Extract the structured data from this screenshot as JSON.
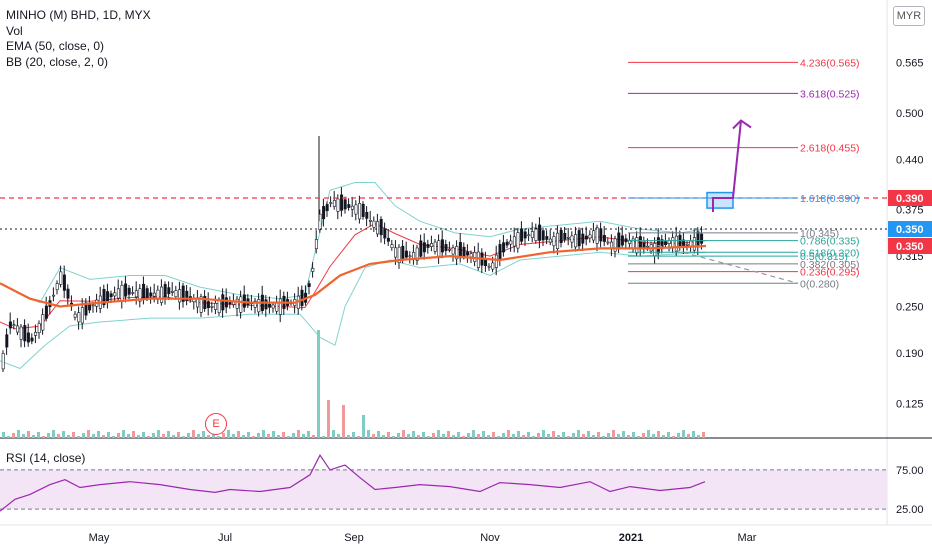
{
  "legend": {
    "title": "MINHO (M) BHD, 1D, MYX",
    "vol": "Vol",
    "ema": "EMA (50, close, 0)",
    "bb": "BB (20, close, 2, 0)"
  },
  "currency_button": "MYR",
  "earnings_marker": "E",
  "rsi_label": "RSI (14, close)",
  "colors": {
    "up": "#131722",
    "down": "#131722",
    "ema": "#f0642d",
    "bb_band": "#7fd3cf",
    "bb_basis": "#f23645",
    "red_price": "#f23645",
    "blue_price": "#2196f3",
    "fib_purple": "#9c27b0",
    "rsi_line": "#9c27b0",
    "rsi_fill": "#f3e5f5"
  },
  "chart_data": {
    "type": "candlestick",
    "y_tick_labels": [
      "0.565",
      "0.500",
      "0.440",
      "0.375",
      "0.315",
      "0.250",
      "0.190",
      "0.125"
    ],
    "x_tick_labels": [
      "May",
      "Jul",
      "Sep",
      "Nov",
      "2021",
      "Mar"
    ],
    "price_labels": [
      {
        "text": "0.390",
        "color": "#f23645"
      },
      {
        "text": "0.350",
        "color": "#2196f3"
      },
      {
        "text": "0.350",
        "color": "#f23645"
      }
    ],
    "fib_levels": [
      {
        "label": "4.236(0.565)",
        "value": 0.565,
        "color": "#f23645"
      },
      {
        "label": "3.618(0.525)",
        "value": 0.525,
        "color": "#9c27b0"
      },
      {
        "label": "2.618(0.455)",
        "value": 0.455,
        "color": "#f23645"
      },
      {
        "label": "1.618(0.390)",
        "value": 0.39,
        "color": "#2196f3"
      },
      {
        "label": "1(0.345)",
        "value": 0.345,
        "color": "#787b86"
      },
      {
        "label": "0.786(0.335)",
        "value": 0.335,
        "color": "#26a69a"
      },
      {
        "label": "0.618(0.320)",
        "value": 0.32,
        "color": "#26a69a"
      },
      {
        "label": "0.5(0.315)",
        "value": 0.315,
        "color": "#26a69a"
      },
      {
        "label": "0.382(0.305)",
        "value": 0.305,
        "color": "#787b86"
      },
      {
        "label": "0.236(0.295)",
        "value": 0.295,
        "color": "#f23645"
      },
      {
        "label": "0(0.280)",
        "value": 0.28,
        "color": "#787b86"
      }
    ],
    "resistance": 0.39,
    "current": 0.35,
    "rsi_ticks": [
      "75.00",
      "25.00"
    ],
    "rsi_levels": [
      70,
      30
    ],
    "price_path": [
      [
        0,
        0.17
      ],
      [
        10,
        0.23
      ],
      [
        30,
        0.205
      ],
      [
        45,
        0.24
      ],
      [
        60,
        0.29
      ],
      [
        75,
        0.235
      ],
      [
        95,
        0.255
      ],
      [
        120,
        0.27
      ],
      [
        150,
        0.265
      ],
      [
        170,
        0.27
      ],
      [
        190,
        0.26
      ],
      [
        210,
        0.25
      ],
      [
        230,
        0.255
      ],
      [
        250,
        0.255
      ],
      [
        270,
        0.25
      ],
      [
        290,
        0.255
      ],
      [
        305,
        0.26
      ],
      [
        312,
        0.3
      ],
      [
        318,
        0.36
      ],
      [
        330,
        0.385
      ],
      [
        345,
        0.38
      ],
      [
        360,
        0.375
      ],
      [
        370,
        0.36
      ],
      [
        380,
        0.35
      ],
      [
        395,
        0.32
      ],
      [
        410,
        0.315
      ],
      [
        430,
        0.33
      ],
      [
        445,
        0.325
      ],
      [
        460,
        0.32
      ],
      [
        475,
        0.315
      ],
      [
        490,
        0.3
      ],
      [
        505,
        0.33
      ],
      [
        520,
        0.34
      ],
      [
        535,
        0.345
      ],
      [
        550,
        0.335
      ],
      [
        565,
        0.34
      ],
      [
        580,
        0.335
      ],
      [
        595,
        0.345
      ],
      [
        610,
        0.33
      ],
      [
        625,
        0.335
      ],
      [
        640,
        0.33
      ],
      [
        655,
        0.325
      ],
      [
        670,
        0.335
      ],
      [
        685,
        0.33
      ],
      [
        700,
        0.335
      ],
      [
        706,
        0.35
      ]
    ],
    "ema_path": [
      [
        0,
        0.28
      ],
      [
        30,
        0.26
      ],
      [
        60,
        0.25
      ],
      [
        100,
        0.255
      ],
      [
        150,
        0.26
      ],
      [
        200,
        0.26
      ],
      [
        250,
        0.255
      ],
      [
        295,
        0.255
      ],
      [
        315,
        0.265
      ],
      [
        340,
        0.29
      ],
      [
        370,
        0.305
      ],
      [
        400,
        0.31
      ],
      [
        450,
        0.315
      ],
      [
        500,
        0.31
      ],
      [
        550,
        0.32
      ],
      [
        600,
        0.325
      ],
      [
        650,
        0.325
      ],
      [
        706,
        0.328
      ]
    ],
    "bb_upper_path": [
      [
        0,
        0.28
      ],
      [
        15,
        0.27
      ],
      [
        40,
        0.255
      ],
      [
        60,
        0.3
      ],
      [
        90,
        0.285
      ],
      [
        130,
        0.29
      ],
      [
        165,
        0.29
      ],
      [
        200,
        0.275
      ],
      [
        240,
        0.265
      ],
      [
        280,
        0.26
      ],
      [
        305,
        0.265
      ],
      [
        315,
        0.32
      ],
      [
        330,
        0.4
      ],
      [
        355,
        0.41
      ],
      [
        375,
        0.41
      ],
      [
        395,
        0.38
      ],
      [
        420,
        0.36
      ],
      [
        455,
        0.345
      ],
      [
        490,
        0.34
      ],
      [
        520,
        0.35
      ],
      [
        560,
        0.355
      ],
      [
        600,
        0.36
      ],
      [
        640,
        0.35
      ],
      [
        680,
        0.345
      ],
      [
        706,
        0.35
      ]
    ],
    "bb_lower_path": [
      [
        0,
        0.18
      ],
      [
        20,
        0.17
      ],
      [
        45,
        0.2
      ],
      [
        70,
        0.225
      ],
      [
        100,
        0.23
      ],
      [
        150,
        0.235
      ],
      [
        200,
        0.235
      ],
      [
        250,
        0.24
      ],
      [
        300,
        0.24
      ],
      [
        320,
        0.21
      ],
      [
        335,
        0.2
      ],
      [
        345,
        0.25
      ],
      [
        365,
        0.3
      ],
      [
        390,
        0.31
      ],
      [
        420,
        0.3
      ],
      [
        460,
        0.305
      ],
      [
        490,
        0.29
      ],
      [
        520,
        0.31
      ],
      [
        560,
        0.315
      ],
      [
        600,
        0.32
      ],
      [
        640,
        0.315
      ],
      [
        706,
        0.32
      ]
    ],
    "rsi_path": [
      [
        0,
        28
      ],
      [
        15,
        40
      ],
      [
        30,
        45
      ],
      [
        50,
        55
      ],
      [
        65,
        60
      ],
      [
        80,
        52
      ],
      [
        100,
        55
      ],
      [
        130,
        58
      ],
      [
        160,
        55
      ],
      [
        190,
        50
      ],
      [
        215,
        47
      ],
      [
        230,
        50
      ],
      [
        260,
        48
      ],
      [
        290,
        52
      ],
      [
        310,
        65
      ],
      [
        320,
        85
      ],
      [
        330,
        70
      ],
      [
        345,
        75
      ],
      [
        360,
        62
      ],
      [
        375,
        50
      ],
      [
        395,
        52
      ],
      [
        420,
        55
      ],
      [
        450,
        53
      ],
      [
        480,
        48
      ],
      [
        500,
        57
      ],
      [
        530,
        55
      ],
      [
        560,
        52
      ],
      [
        590,
        58
      ],
      [
        610,
        48
      ],
      [
        630,
        53
      ],
      [
        660,
        49
      ],
      [
        690,
        52
      ],
      [
        705,
        58
      ]
    ],
    "volume_spikes": [
      [
        318,
        1.0
      ],
      [
        325,
        0.3
      ],
      [
        340,
        0.25
      ],
      [
        360,
        0.15
      ]
    ]
  }
}
